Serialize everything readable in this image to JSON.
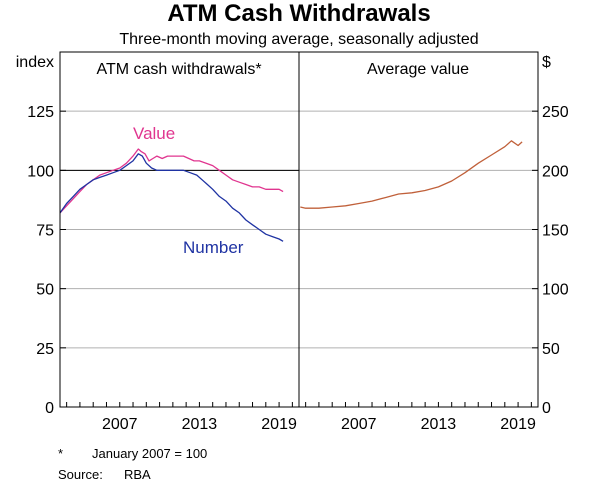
{
  "title": "ATM Cash Withdrawals",
  "subtitle": "Three-month moving average, seasonally adjusted",
  "notes": [
    {
      "marker": "*",
      "text": "January 2007 = 100"
    },
    {
      "marker": "Source:",
      "text": "RBA"
    }
  ],
  "colors": {
    "value": "#e0358f",
    "number": "#1f33a3",
    "average": "#c0603a",
    "grid": "#b0b0b0",
    "axis": "#000000"
  },
  "chart_data": [
    {
      "type": "line",
      "title": "ATM cash withdrawals*",
      "left_axis_label": "index",
      "ylim": [
        0,
        150
      ],
      "yticks": [
        0,
        25,
        50,
        75,
        100,
        125
      ],
      "xlim": [
        2002.5,
        2020.5
      ],
      "xticks": [
        "2007",
        "2013",
        "2019"
      ],
      "reference_line": 100,
      "grid": true,
      "series": [
        {
          "name": "Value",
          "color": "#e0358f",
          "points": [
            [
              2002.5,
              82
            ],
            [
              2003.0,
              85
            ],
            [
              2003.5,
              88
            ],
            [
              2004.0,
              91
            ],
            [
              2004.5,
              94
            ],
            [
              2005.0,
              96
            ],
            [
              2005.5,
              98
            ],
            [
              2006.0,
              99
            ],
            [
              2006.5,
              100
            ],
            [
              2007.0,
              101
            ],
            [
              2007.5,
              103
            ],
            [
              2008.0,
              106
            ],
            [
              2008.4,
              109
            ],
            [
              2008.6,
              108
            ],
            [
              2008.9,
              107
            ],
            [
              2009.2,
              104
            ],
            [
              2009.5,
              105
            ],
            [
              2009.8,
              106
            ],
            [
              2010.2,
              105
            ],
            [
              2010.6,
              106
            ],
            [
              2011.0,
              106
            ],
            [
              2011.4,
              106
            ],
            [
              2011.8,
              106
            ],
            [
              2012.2,
              105
            ],
            [
              2012.6,
              104
            ],
            [
              2013.0,
              104
            ],
            [
              2013.5,
              103
            ],
            [
              2014.0,
              102
            ],
            [
              2014.5,
              100
            ],
            [
              2015.0,
              98
            ],
            [
              2015.5,
              96
            ],
            [
              2016.0,
              95
            ],
            [
              2016.5,
              94
            ],
            [
              2017.0,
              93
            ],
            [
              2017.5,
              93
            ],
            [
              2018.0,
              92
            ],
            [
              2018.5,
              92
            ],
            [
              2019.0,
              92
            ],
            [
              2019.3,
              91
            ]
          ]
        },
        {
          "name": "Number",
          "color": "#1f33a3",
          "points": [
            [
              2002.5,
              82
            ],
            [
              2003.0,
              86
            ],
            [
              2003.5,
              89
            ],
            [
              2004.0,
              92
            ],
            [
              2004.5,
              94
            ],
            [
              2005.0,
              96
            ],
            [
              2005.5,
              97
            ],
            [
              2006.0,
              98
            ],
            [
              2006.5,
              99
            ],
            [
              2007.0,
              100
            ],
            [
              2007.5,
              102
            ],
            [
              2008.0,
              104
            ],
            [
              2008.4,
              107
            ],
            [
              2008.7,
              106
            ],
            [
              2009.0,
              103
            ],
            [
              2009.4,
              101
            ],
            [
              2009.8,
              100
            ],
            [
              2010.3,
              100
            ],
            [
              2010.8,
              100
            ],
            [
              2011.3,
              100
            ],
            [
              2011.8,
              100
            ],
            [
              2012.3,
              99
            ],
            [
              2012.8,
              98
            ],
            [
              2013.2,
              96
            ],
            [
              2013.6,
              94
            ],
            [
              2014.0,
              92
            ],
            [
              2014.5,
              89
            ],
            [
              2015.0,
              87
            ],
            [
              2015.5,
              84
            ],
            [
              2016.0,
              82
            ],
            [
              2016.5,
              79
            ],
            [
              2017.0,
              77
            ],
            [
              2017.5,
              75
            ],
            [
              2018.0,
              73
            ],
            [
              2018.5,
              72
            ],
            [
              2019.0,
              71
            ],
            [
              2019.3,
              70
            ]
          ]
        }
      ],
      "annotations": [
        {
          "text": "Value",
          "series": "Value"
        },
        {
          "text": "Number",
          "series": "Number"
        }
      ]
    },
    {
      "type": "line",
      "title": "Average value",
      "right_axis_label": "$",
      "ylim": [
        0,
        300
      ],
      "yticks": [
        0,
        50,
        100,
        150,
        200,
        250
      ],
      "xlim": [
        2002.5,
        2020.5
      ],
      "xticks": [
        "2007",
        "2013",
        "2019"
      ],
      "grid": true,
      "series": [
        {
          "name": "",
          "color": "#c0603a",
          "points": [
            [
              2002.6,
              169
            ],
            [
              2003.0,
              168
            ],
            [
              2004.0,
              168
            ],
            [
              2005.0,
              169
            ],
            [
              2006.0,
              170
            ],
            [
              2007.0,
              172
            ],
            [
              2008.0,
              174
            ],
            [
              2009.0,
              177
            ],
            [
              2010.0,
              180
            ],
            [
              2011.0,
              181
            ],
            [
              2012.0,
              183
            ],
            [
              2013.0,
              186
            ],
            [
              2014.0,
              191
            ],
            [
              2015.0,
              198
            ],
            [
              2016.0,
              206
            ],
            [
              2017.0,
              213
            ],
            [
              2018.0,
              220
            ],
            [
              2018.5,
              225
            ],
            [
              2019.0,
              221
            ],
            [
              2019.3,
              224
            ]
          ]
        }
      ]
    }
  ]
}
